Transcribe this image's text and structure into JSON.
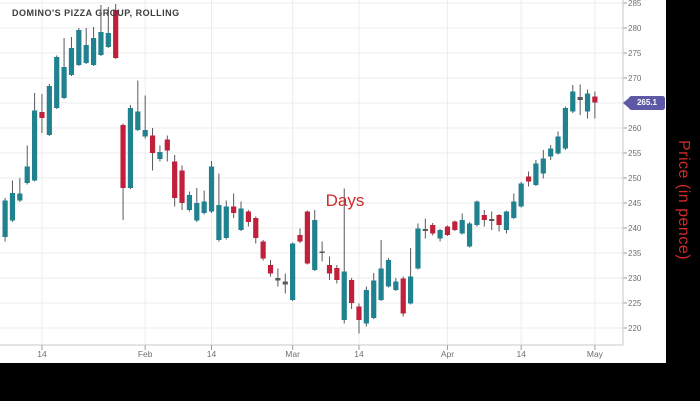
{
  "chart": {
    "title": "DOMINO'S PIZZA GROUP, ROLLING",
    "y_axis_title": "Price (in pence)",
    "x_axis_title": "Days",
    "last_price_label": "265.1"
  },
  "chart_data": {
    "type": "candlestick",
    "title": "DOMINO'S PIZZA GROUP, ROLLING",
    "xlabel": "Days",
    "ylabel": "Price (in pence)",
    "ylim": [
      216.6,
      285.6
    ],
    "grid": true,
    "last_price": 265.1,
    "y_ticks": [
      220,
      225,
      230,
      235,
      240,
      245,
      250,
      255,
      260,
      265,
      270,
      275,
      280,
      285
    ],
    "x_ticks": [
      {
        "label": "14",
        "index": 5
      },
      {
        "label": "Feb",
        "index": 19
      },
      {
        "label": "14",
        "index": 28
      },
      {
        "label": "Mar",
        "index": 39
      },
      {
        "label": "14",
        "index": 48
      },
      {
        "label": "Apr",
        "index": 60
      },
      {
        "label": "14",
        "index": 70
      },
      {
        "label": "May",
        "index": 80
      }
    ],
    "series_note": "each candle = [open, high, low, close] in pence, left to right (daily)",
    "candles": [
      [
        238.2,
        246.0,
        237.3,
        245.5
      ],
      [
        241.5,
        249.5,
        241.2,
        247.0
      ],
      [
        245.5,
        250.0,
        245.2,
        246.9
      ],
      [
        249.0,
        256.5,
        248.7,
        252.3
      ],
      [
        249.5,
        267.0,
        249.3,
        263.5
      ],
      [
        263.2,
        266.8,
        259.0,
        262.0
      ],
      [
        258.6,
        268.8,
        258.4,
        268.4
      ],
      [
        264.0,
        274.5,
        263.8,
        274.2
      ],
      [
        266.0,
        278.0,
        265.8,
        272.2
      ],
      [
        270.6,
        278.2,
        270.4,
        276.0
      ],
      [
        272.6,
        280.0,
        272.4,
        279.6
      ],
      [
        273.0,
        280.0,
        272.8,
        276.6
      ],
      [
        272.6,
        280.2,
        272.4,
        278.0
      ],
      [
        274.6,
        284.6,
        274.4,
        279.2
      ],
      [
        276.2,
        284.2,
        276.0,
        279.0
      ],
      [
        283.6,
        284.8,
        273.8,
        274.0
      ],
      [
        260.6,
        260.9,
        241.6,
        248.0
      ],
      [
        248.0,
        264.6,
        247.8,
        264.0
      ],
      [
        259.6,
        269.5,
        259.4,
        263.3
      ],
      [
        258.3,
        266.5,
        257.9,
        259.6
      ],
      [
        258.5,
        260.0,
        251.5,
        255.0
      ],
      [
        253.8,
        256.5,
        253.3,
        255.2
      ],
      [
        257.7,
        258.5,
        253.3,
        255.5
      ],
      [
        253.3,
        254.6,
        244.3,
        246.0
      ],
      [
        251.5,
        252.5,
        243.6,
        245.0
      ],
      [
        243.6,
        247.3,
        243.3,
        246.6
      ],
      [
        241.5,
        248.0,
        241.2,
        245.0
      ],
      [
        243.0,
        247.5,
        242.7,
        245.3
      ],
      [
        243.3,
        253.4,
        243.0,
        252.3
      ],
      [
        237.6,
        250.9,
        237.3,
        244.6
      ],
      [
        238.0,
        245.5,
        237.7,
        244.3
      ],
      [
        244.3,
        246.9,
        242.0,
        243.0
      ],
      [
        239.6,
        245.3,
        239.4,
        243.9
      ],
      [
        243.3,
        243.6,
        240.3,
        241.2
      ],
      [
        242.0,
        242.3,
        236.9,
        238.0
      ],
      [
        237.3,
        237.6,
        233.5,
        233.9
      ],
      [
        232.6,
        233.6,
        230.3,
        230.9
      ],
      [
        229.5,
        231.9,
        228.3,
        230.0
      ],
      [
        229.3,
        230.9,
        226.9,
        228.7
      ],
      [
        225.6,
        237.1,
        225.4,
        236.9
      ],
      [
        238.6,
        239.9,
        237.0,
        237.3
      ],
      [
        243.3,
        243.5,
        232.7,
        232.9
      ],
      [
        231.6,
        243.6,
        231.4,
        241.6
      ],
      [
        235.0,
        237.3,
        233.3,
        235.3
      ],
      [
        232.6,
        234.3,
        229.6,
        230.9
      ],
      [
        232.0,
        232.6,
        228.9,
        229.6
      ],
      [
        221.6,
        247.9,
        220.9,
        231.3
      ],
      [
        229.6,
        230.0,
        223.8,
        225.0
      ],
      [
        224.3,
        224.9,
        218.9,
        221.6
      ],
      [
        220.9,
        228.3,
        220.3,
        227.6
      ],
      [
        222.0,
        231.0,
        221.8,
        229.5
      ],
      [
        225.6,
        237.6,
        225.4,
        231.9
      ],
      [
        228.3,
        234.0,
        228.1,
        233.6
      ],
      [
        227.6,
        230.0,
        227.4,
        229.3
      ],
      [
        229.9,
        230.3,
        222.3,
        222.9
      ],
      [
        224.9,
        236.0,
        224.7,
        230.3
      ],
      [
        231.9,
        240.9,
        231.7,
        239.9
      ],
      [
        239.4,
        241.9,
        237.9,
        239.8
      ],
      [
        240.6,
        241.0,
        238.5,
        238.9
      ],
      [
        237.9,
        239.8,
        237.3,
        239.6
      ],
      [
        240.3,
        240.5,
        238.4,
        238.6
      ],
      [
        241.3,
        241.5,
        239.4,
        239.6
      ],
      [
        238.9,
        242.9,
        238.7,
        241.6
      ],
      [
        236.3,
        241.2,
        236.1,
        240.9
      ],
      [
        240.6,
        245.5,
        240.3,
        245.3
      ],
      [
        242.6,
        243.6,
        240.3,
        241.6
      ],
      [
        241.4,
        243.3,
        239.6,
        241.8
      ],
      [
        242.6,
        242.8,
        239.3,
        240.6
      ],
      [
        239.6,
        243.5,
        238.9,
        243.3
      ],
      [
        242.0,
        246.9,
        241.8,
        245.3
      ],
      [
        244.3,
        249.2,
        244.1,
        248.9
      ],
      [
        250.3,
        251.3,
        248.3,
        249.3
      ],
      [
        248.6,
        253.6,
        248.4,
        252.9
      ],
      [
        250.9,
        255.6,
        249.9,
        253.9
      ],
      [
        254.3,
        256.6,
        253.6,
        255.9
      ],
      [
        254.9,
        259.3,
        254.7,
        258.3
      ],
      [
        255.9,
        264.3,
        255.6,
        264.0
      ],
      [
        263.3,
        268.6,
        263.0,
        267.3
      ],
      [
        265.6,
        268.7,
        262.6,
        266.2
      ],
      [
        263.3,
        267.7,
        261.9,
        266.9
      ],
      [
        266.3,
        267.3,
        261.9,
        265.1
      ]
    ],
    "colors": {
      "up": "#20818f",
      "down": "#c1203b",
      "wick": "#56595c",
      "doji": "#56595c",
      "grid": "#ececec",
      "axis": "#c9c9c9",
      "tick": "#9b9b9b",
      "badge": "#5d59a6",
      "axis_title": "#d12a2a"
    },
    "legend": "none"
  }
}
